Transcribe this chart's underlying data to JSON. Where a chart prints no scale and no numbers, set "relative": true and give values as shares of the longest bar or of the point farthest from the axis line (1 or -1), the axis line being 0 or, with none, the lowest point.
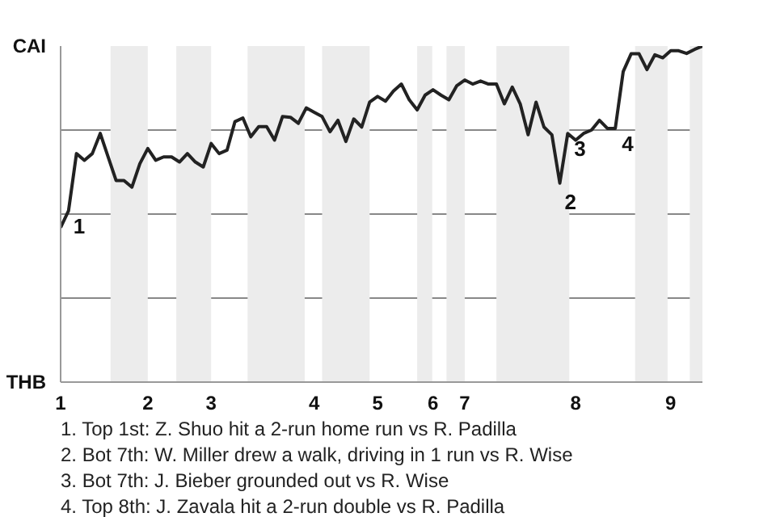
{
  "chart_data": {
    "type": "line",
    "relative": true,
    "categories": [
      "1",
      null,
      null,
      null,
      null,
      null,
      null,
      null,
      null,
      null,
      null,
      "2",
      null,
      null,
      null,
      null,
      null,
      null,
      null,
      "3",
      null,
      null,
      null,
      null,
      null,
      null,
      null,
      null,
      null,
      null,
      null,
      null,
      "4",
      null,
      null,
      null,
      null,
      null,
      null,
      null,
      "5",
      null,
      null,
      null,
      null,
      null,
      null,
      "6",
      null,
      null,
      null,
      "7",
      null,
      null,
      null,
      null,
      null,
      null,
      null,
      null,
      null,
      null,
      null,
      null,
      null,
      "8",
      null,
      null,
      null,
      null,
      null,
      null,
      null,
      null,
      null,
      null,
      null,
      "9",
      null,
      null,
      null,
      null
    ],
    "grid": "y",
    "marker": "none",
    "line_style": "solid",
    "series": [
      {
        "color": "#222222",
        "values": [
          0.46,
          0.51,
          0.68,
          0.66,
          0.68,
          0.74,
          0.67,
          0.6,
          0.6,
          0.58,
          0.65,
          0.695,
          0.66,
          0.67,
          0.67,
          0.655,
          0.68,
          0.655,
          0.64,
          0.71,
          0.68,
          0.69,
          0.775,
          0.786,
          0.73,
          0.76,
          0.76,
          0.72,
          0.79,
          0.788,
          0.77,
          0.816,
          0.803,
          0.79,
          0.745,
          0.779,
          0.716,
          0.783,
          0.759,
          0.833,
          0.85,
          0.836,
          0.866,
          0.887,
          0.84,
          0.81,
          0.854,
          0.87,
          0.854,
          0.84,
          0.882,
          0.899,
          0.887,
          0.896,
          0.887,
          0.887,
          0.828,
          0.878,
          0.828,
          0.736,
          0.833,
          0.759,
          0.736,
          0.592,
          0.74,
          0.72,
          0.74,
          0.75,
          0.779,
          0.755,
          0.755,
          0.924,
          0.977,
          0.977,
          0.93,
          0.974,
          0.965,
          0.986,
          0.986,
          0.978,
          0.99,
          1
        ]
      }
    ],
    "annotations": [
      "CAI",
      "THB",
      "1",
      "2",
      "3",
      "4",
      "1. Top 1st: Z. Shuo hit a 2-run home run vs R. Padilla",
      "2. Bot 7th: W. Miller drew a walk, driving in 1 run vs R. Wise",
      "3. Bot 7th: J. Bieber grounded out vs R. Wise",
      "4. Top 8th: J. Zavala hit a 2-run double vs R. Padilla"
    ]
  }
}
